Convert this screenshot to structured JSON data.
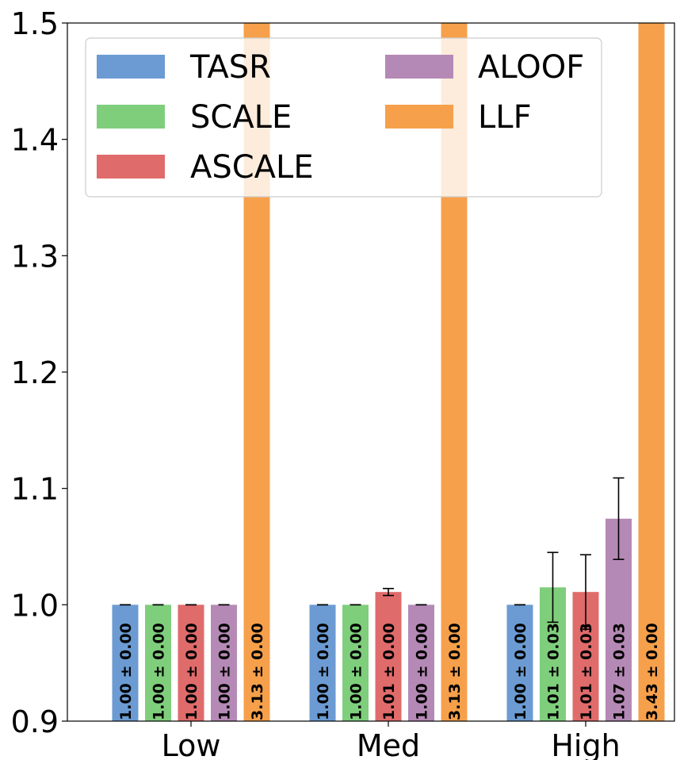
{
  "chart_data": {
    "type": "bar",
    "title": "",
    "xlabel": "",
    "ylabel": "",
    "ylim": [
      0.9,
      1.5
    ],
    "yticks": [
      "0.9",
      "1.0",
      "1.1",
      "1.2",
      "1.3",
      "1.4",
      "1.5"
    ],
    "categories": [
      "Low",
      "Med",
      "High"
    ],
    "legend_position": "top",
    "grid": false,
    "series": [
      {
        "name": "TASR",
        "color": "#6b9bd2",
        "values": [
          1.0,
          1.0,
          1.0
        ],
        "errors": [
          0.0,
          0.0,
          0.0
        ],
        "labels": [
          "1.00 ± 0.00",
          "1.00 ± 0.00",
          "1.00 ± 0.00"
        ]
      },
      {
        "name": "SCALE",
        "color": "#7fce7c",
        "values": [
          1.0,
          1.0,
          1.015
        ],
        "errors": [
          0.0,
          0.0,
          0.03
        ],
        "labels": [
          "1.00 ± 0.00",
          "1.00 ± 0.00",
          "1.01 ± 0.03"
        ]
      },
      {
        "name": "ASCALE",
        "color": "#e06b6b",
        "values": [
          1.0,
          1.011,
          1.011
        ],
        "errors": [
          0.0,
          0.003,
          0.032
        ],
        "labels": [
          "1.00 ± 0.00",
          "1.01 ± 0.00",
          "1.01 ± 0.03"
        ]
      },
      {
        "name": "ALOOF",
        "color": "#b589b5",
        "values": [
          1.0,
          1.0,
          1.074
        ],
        "errors": [
          0.0,
          0.0,
          0.035
        ],
        "labels": [
          "1.00 ± 0.00",
          "1.00 ± 0.00",
          "1.07 ± 0.03"
        ]
      },
      {
        "name": "LLF",
        "color": "#f6a04b",
        "values": [
          3.13,
          3.13,
          3.43
        ],
        "errors": [
          0.0,
          0.0,
          0.0
        ],
        "labels": [
          "3.13 ± 0.00",
          "3.13 ± 0.00",
          "3.43 ± 0.00"
        ]
      }
    ]
  }
}
